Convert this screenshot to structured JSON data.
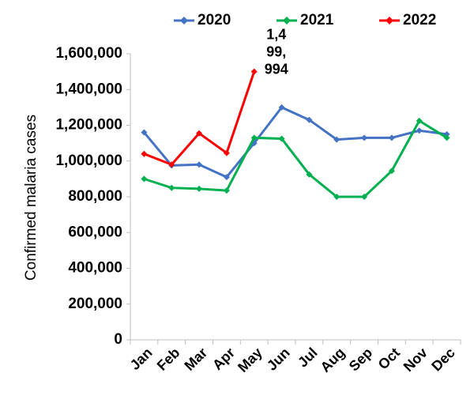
{
  "chart_data": {
    "type": "line",
    "y_label": "Confirmed malaria cases",
    "categories": [
      "Jan",
      "Feb",
      "Mar",
      "Apr",
      "May",
      "Jun",
      "Jul",
      "Aug",
      "Sep",
      "Oct",
      "Nov",
      "Dec"
    ],
    "series": [
      {
        "name": "2020",
        "color": "#4472c4",
        "values": [
          1160000,
          975000,
          980000,
          910000,
          1100000,
          1300000,
          1230000,
          1120000,
          1130000,
          1130000,
          1170000,
          1150000
        ]
      },
      {
        "name": "2021",
        "color": "#00b050",
        "values": [
          900000,
          850000,
          845000,
          835000,
          1130000,
          1125000,
          925000,
          800000,
          800000,
          945000,
          1225000,
          1130000
        ]
      },
      {
        "name": "2022",
        "color": "#ff0000",
        "values": [
          1040000,
          980000,
          1155000,
          1045000,
          1499994,
          null,
          null,
          null,
          null,
          null,
          null,
          null
        ],
        "value_labels": [
          null,
          null,
          null,
          null,
          "1,499,994",
          null,
          null,
          null,
          null,
          null,
          null,
          null
        ]
      }
    ],
    "ylim": [
      0,
      1600000
    ],
    "yticks": [
      0,
      {
        "value": 200000,
        "label": "200,000"
      },
      {
        "value": 400000,
        "label": "400,000"
      },
      {
        "value": 600000,
        "label": "600,000"
      },
      {
        "value": 800000,
        "label": "800,000"
      },
      {
        "value": 1000000,
        "label": "1,000,000"
      },
      {
        "value": 1200000,
        "label": "1,200,000"
      },
      {
        "value": 1400000,
        "label": "1,400,000"
      },
      {
        "value": 1600000,
        "label": "1,600,000"
      }
    ],
    "legend": "top",
    "grid": false
  }
}
